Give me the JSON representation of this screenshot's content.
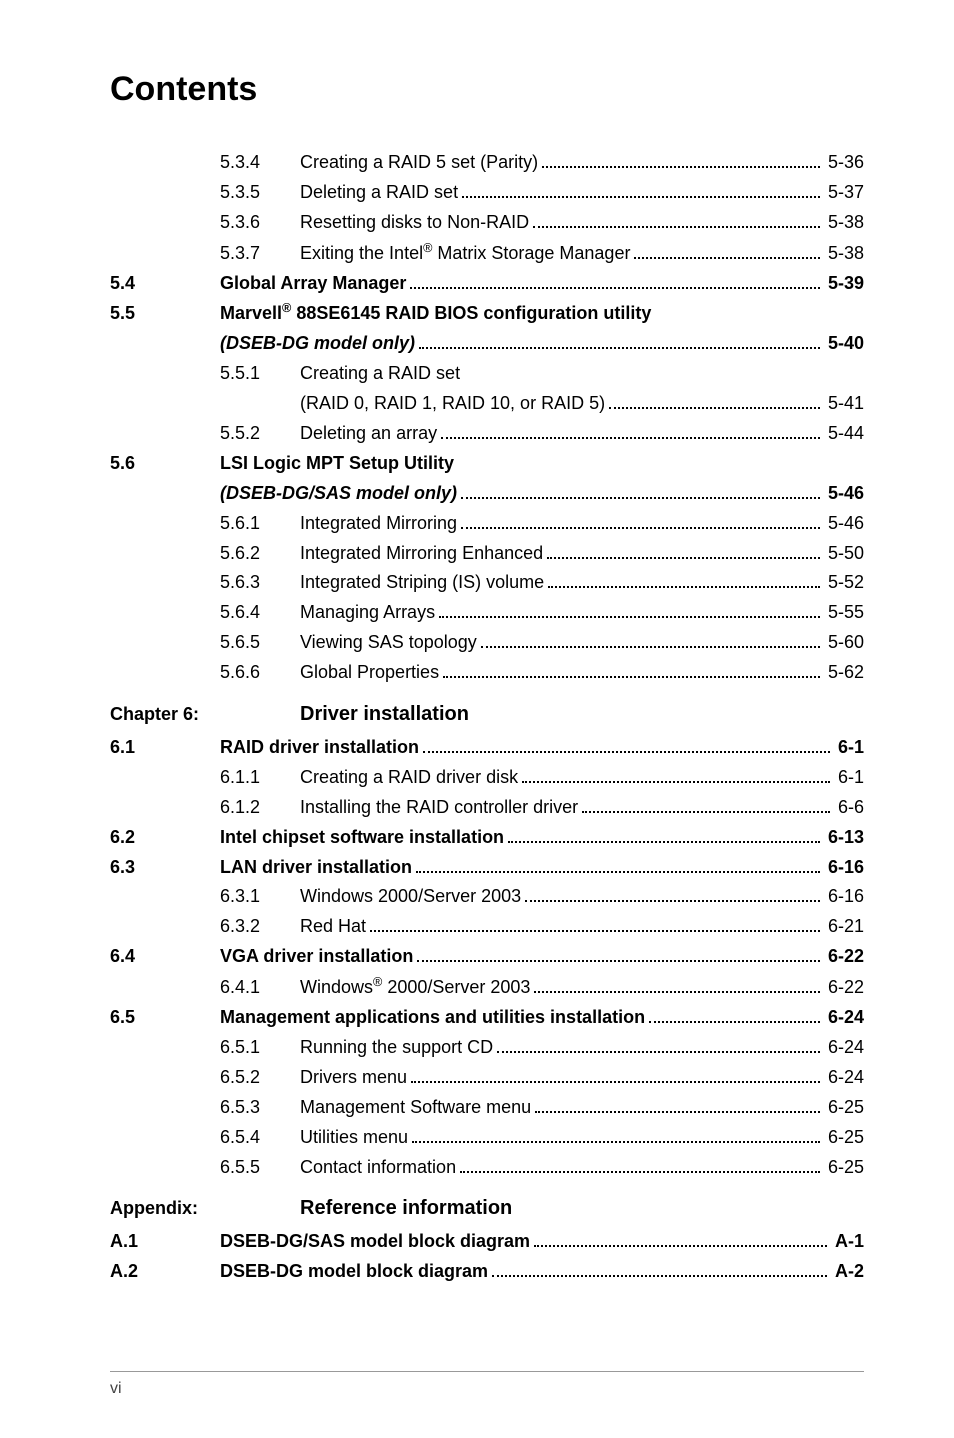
{
  "title": "Contents",
  "footer_page": "vi",
  "colors": {
    "text": "#000000",
    "background": "#ffffff",
    "footer_rule": "#999999",
    "footer_text": "#444444"
  },
  "typography": {
    "title_fontsize": 34,
    "body_fontsize": 18,
    "chapter_title_fontsize": 20,
    "font_family": "Arial, Helvetica, sans-serif",
    "line_height": 1.55
  },
  "entries": [
    {
      "kind": "sub",
      "c1": "",
      "c2": "5.3.4",
      "label": "Creating a RAID 5 set (Parity)",
      "page": "5-36"
    },
    {
      "kind": "sub",
      "c1": "",
      "c2": "5.3.5",
      "label": "Deleting a RAID set",
      "page": "5-37"
    },
    {
      "kind": "sub",
      "c1": "",
      "c2": "5.3.6",
      "label": "Resetting disks to Non-RAID",
      "page": "5-38"
    },
    {
      "kind": "sub",
      "c1": "",
      "c2": "5.3.7",
      "label": "Exiting the Intel<sup>®</sup> Matrix Storage Manager",
      "page": "5-38"
    },
    {
      "kind": "sec",
      "c1": "5.4",
      "label": "Global Array Manager",
      "page": "5-39",
      "bold": true
    },
    {
      "kind": "sec-multi",
      "c1": "5.5",
      "label1": "Marvell<sup>®</sup> 88SE6145 RAID BIOS configuration utility",
      "label2": "<span class=\"italic bold\">(DSEB-DG model only)</span>",
      "page": "5-40",
      "bold": true
    },
    {
      "kind": "sub-multi",
      "c1": "",
      "c2": "5.5.1",
      "label1": "Creating a RAID set",
      "label2": "(RAID 0, RAID 1, RAID 10, or RAID 5)",
      "page": "5-41"
    },
    {
      "kind": "sub",
      "c1": "",
      "c2": "5.5.2",
      "label": "Deleting an array",
      "page": "5-44"
    },
    {
      "kind": "sec-multi",
      "c1": "5.6",
      "label1": "LSI Logic MPT Setup Utility",
      "label2": "<span class=\"italic bold\">(DSEB-DG/SAS model only)</span>",
      "page": "5-46",
      "bold": true
    },
    {
      "kind": "sub",
      "c1": "",
      "c2": "5.6.1",
      "label": "Integrated Mirroring",
      "page": "5-46"
    },
    {
      "kind": "sub",
      "c1": "",
      "c2": "5.6.2",
      "label": "Integrated Mirroring Enhanced",
      "page": "5-50"
    },
    {
      "kind": "sub",
      "c1": "",
      "c2": "5.6.3",
      "label": "Integrated Striping (IS) volume",
      "page": "5-52"
    },
    {
      "kind": "sub",
      "c1": "",
      "c2": "5.6.4",
      "label": "Managing Arrays",
      "page": "5-55"
    },
    {
      "kind": "sub",
      "c1": "",
      "c2": "5.6.5",
      "label": "Viewing SAS topology",
      "page": "5-60"
    },
    {
      "kind": "sub",
      "c1": "",
      "c2": "5.6.6",
      "label": "Global Properties",
      "page": "5-62"
    },
    {
      "kind": "chapter",
      "label": "Chapter 6:",
      "title": "Driver installation"
    },
    {
      "kind": "sec",
      "c1": "6.1",
      "label": "RAID driver installation",
      "page": "6-1",
      "bold": true
    },
    {
      "kind": "sub",
      "c1": "",
      "c2": "6.1.1",
      "label": "Creating a RAID driver disk",
      "page": "6-1"
    },
    {
      "kind": "sub",
      "c1": "",
      "c2": "6.1.2",
      "label": "Installing the RAID controller driver",
      "page": "6-6"
    },
    {
      "kind": "sec",
      "c1": "6.2",
      "label": "Intel chipset software installation",
      "page": "6-13",
      "bold": true
    },
    {
      "kind": "sec",
      "c1": "6.3",
      "label": "LAN driver installation",
      "page": "6-16",
      "bold": true
    },
    {
      "kind": "sub",
      "c1": "",
      "c2": "6.3.1",
      "label": "Windows 2000/Server 2003",
      "page": "6-16"
    },
    {
      "kind": "sub",
      "c1": "",
      "c2": "6.3.2",
      "label": "Red Hat",
      "page": "6-21"
    },
    {
      "kind": "sec",
      "c1": "6.4",
      "label": "VGA driver installation",
      "page": "6-22",
      "bold": true
    },
    {
      "kind": "sub",
      "c1": "",
      "c2": "6.4.1",
      "label": "Windows<sup>®</sup> 2000/Server 2003",
      "page": "6-22"
    },
    {
      "kind": "sec",
      "c1": "6.5",
      "label": "Management applications and utilities installation",
      "page": "6-24",
      "bold": true
    },
    {
      "kind": "sub",
      "c1": "",
      "c2": "6.5.1",
      "label": "Running the support CD",
      "page": "6-24"
    },
    {
      "kind": "sub",
      "c1": "",
      "c2": "6.5.2",
      "label": "Drivers menu",
      "page": "6-24"
    },
    {
      "kind": "sub",
      "c1": "",
      "c2": "6.5.3",
      "label": "Management Software menu",
      "page": "6-25"
    },
    {
      "kind": "sub",
      "c1": "",
      "c2": "6.5.4",
      "label": "Utilities menu",
      "page": "6-25"
    },
    {
      "kind": "sub",
      "c1": "",
      "c2": "6.5.5",
      "label": "Contact information",
      "page": "6-25"
    },
    {
      "kind": "chapter",
      "label": "Appendix:",
      "title": "Reference information"
    },
    {
      "kind": "sec",
      "c1": "A.1",
      "label": "DSEB-DG/SAS model block diagram",
      "page": "A-1",
      "bold": true
    },
    {
      "kind": "sec",
      "c1": "A.2",
      "label": "DSEB-DG model block diagram",
      "page": "A-2",
      "bold": true
    }
  ]
}
